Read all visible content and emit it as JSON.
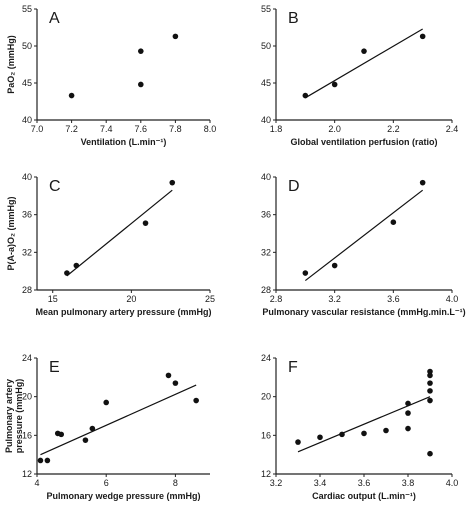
{
  "chart_data": [
    {
      "type": "scatter",
      "panel_label": "A",
      "xlabel": "Ventilation (L.min⁻¹)",
      "ylabel": "PaO₂ (mmHg)",
      "xlim": [
        7.0,
        8.0
      ],
      "ylim": [
        40,
        55
      ],
      "xticks": [
        "7.0",
        "7.2",
        "7.4",
        "7.6",
        "7.8",
        "8.0"
      ],
      "yticks": [
        "40",
        "45",
        "50",
        "55"
      ],
      "points": [
        [
          7.2,
          43.3
        ],
        [
          7.6,
          44.8
        ],
        [
          7.6,
          49.3
        ],
        [
          7.8,
          51.3
        ]
      ],
      "fit": null
    },
    {
      "type": "scatter",
      "panel_label": "B",
      "xlabel": "Global ventilation perfusion (ratio)",
      "ylabel": "",
      "xlim": [
        1.8,
        2.4
      ],
      "ylim": [
        40,
        55
      ],
      "xticks": [
        "1.8",
        "2.0",
        "2.2",
        "2.4"
      ],
      "yticks": [
        "40",
        "45",
        "50",
        "55"
      ],
      "points": [
        [
          1.9,
          43.3
        ],
        [
          2.0,
          44.8
        ],
        [
          2.1,
          49.3
        ],
        [
          2.3,
          51.3
        ]
      ],
      "fit": [
        [
          1.9,
          43.0
        ],
        [
          2.3,
          52.3
        ]
      ]
    },
    {
      "type": "scatter",
      "panel_label": "C",
      "xlabel": "Mean pulmonary artery pressure (mmHg)",
      "ylabel": "P(A-a)O₂ (mmHg)",
      "xlim": [
        14,
        25
      ],
      "ylim": [
        28,
        40
      ],
      "xticks": [
        "15",
        "20",
        "25"
      ],
      "xtick_values": [
        15,
        20,
        25
      ],
      "yticks": [
        "28",
        "32",
        "36",
        "40"
      ],
      "points": [
        [
          15.9,
          29.8
        ],
        [
          16.5,
          30.6
        ],
        [
          20.9,
          35.1
        ],
        [
          22.6,
          39.4
        ]
      ],
      "fit": [
        [
          15.9,
          29.5
        ],
        [
          22.6,
          38.6
        ]
      ]
    },
    {
      "type": "scatter",
      "panel_label": "D",
      "xlabel": "Pulmonary vascular resistance (mmHg.min.L⁻¹)",
      "ylabel": "",
      "xlim": [
        2.8,
        4.0
      ],
      "ylim": [
        28,
        40
      ],
      "xticks": [
        "2.8",
        "3.2",
        "3.6",
        "4.0"
      ],
      "yticks": [
        "28",
        "32",
        "36",
        "40"
      ],
      "points": [
        [
          3.0,
          29.8
        ],
        [
          3.2,
          30.6
        ],
        [
          3.6,
          35.2
        ],
        [
          3.8,
          39.4
        ]
      ],
      "fit": [
        [
          3.0,
          29.0
        ],
        [
          3.8,
          38.6
        ]
      ]
    },
    {
      "type": "scatter",
      "panel_label": "E",
      "xlabel": "Pulmonary wedge pressure (mmHg)",
      "ylabel": "Pulmonary artery pressure (mmHg)",
      "xlim": [
        4,
        9
      ],
      "ylim": [
        12,
        24
      ],
      "xticks": [
        "4",
        "6",
        "8"
      ],
      "xtick_values": [
        4,
        6,
        8
      ],
      "yticks": [
        "12",
        "16",
        "20",
        "24"
      ],
      "points": [
        [
          4.1,
          13.4
        ],
        [
          4.3,
          13.4
        ],
        [
          4.6,
          16.2
        ],
        [
          4.7,
          16.1
        ],
        [
          5.4,
          15.5
        ],
        [
          5.6,
          16.7
        ],
        [
          6.0,
          19.4
        ],
        [
          7.8,
          22.2
        ],
        [
          8.0,
          21.4
        ],
        [
          8.6,
          19.6
        ]
      ],
      "fit": [
        [
          4.1,
          14.0
        ],
        [
          8.6,
          21.2
        ]
      ]
    },
    {
      "type": "scatter",
      "panel_label": "F",
      "xlabel": "Cardiac output (L.min⁻¹)",
      "ylabel": "",
      "xlim": [
        3.2,
        4.0
      ],
      "ylim": [
        12,
        24
      ],
      "xticks": [
        "3.2",
        "3.4",
        "3.6",
        "3.8",
        "4.0"
      ],
      "yticks": [
        "12",
        "16",
        "20",
        "24"
      ],
      "points": [
        [
          3.3,
          15.3
        ],
        [
          3.4,
          15.8
        ],
        [
          3.5,
          16.1
        ],
        [
          3.6,
          16.2
        ],
        [
          3.7,
          16.5
        ],
        [
          3.8,
          16.7
        ],
        [
          3.8,
          18.3
        ],
        [
          3.8,
          19.3
        ],
        [
          3.9,
          14.1
        ],
        [
          3.9,
          19.6
        ],
        [
          3.9,
          20.6
        ],
        [
          3.9,
          21.4
        ],
        [
          3.9,
          22.2
        ],
        [
          3.9,
          22.6
        ]
      ],
      "fit": [
        [
          3.3,
          14.3
        ],
        [
          3.9,
          20.0
        ]
      ]
    }
  ]
}
